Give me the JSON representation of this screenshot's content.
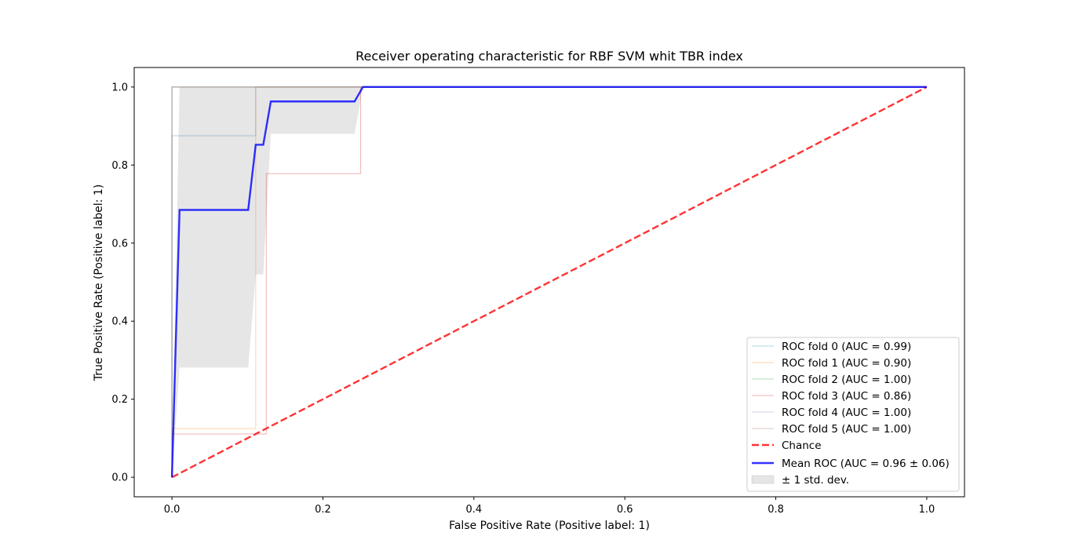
{
  "chart_data": {
    "type": "line",
    "title": "Receiver operating characteristic for RBF SVM whit TBR index",
    "xlabel": "False Positive Rate (Positive label: 1)",
    "ylabel": "True Positive Rate (Positive label: 1)",
    "xlim": [
      -0.05,
      1.05
    ],
    "ylim": [
      -0.05,
      1.05
    ],
    "xticks": [
      "0.0",
      "0.2",
      "0.4",
      "0.6",
      "0.8",
      "1.0"
    ],
    "yticks": [
      "0.0",
      "0.2",
      "0.4",
      "0.6",
      "0.8",
      "1.0"
    ],
    "grid": false,
    "legend_position": "lower-right",
    "series": [
      {
        "name": "ROC fold 0 (AUC = 0.99)",
        "color": "#1f77b4",
        "style": "thin",
        "points": [
          [
            0,
            0
          ],
          [
            0,
            0.875
          ],
          [
            0.111,
            0.875
          ],
          [
            0.111,
            1.0
          ],
          [
            1.0,
            1.0
          ]
        ]
      },
      {
        "name": "ROC fold 1 (AUC = 0.90)",
        "color": "#ff7f0e",
        "style": "thin",
        "points": [
          [
            0,
            0
          ],
          [
            0,
            0.125
          ],
          [
            0.111,
            0.125
          ],
          [
            0.111,
            1.0
          ],
          [
            1.0,
            1.0
          ]
        ]
      },
      {
        "name": "ROC fold 2 (AUC = 1.00)",
        "color": "#2ca02c",
        "style": "thin",
        "points": [
          [
            0,
            0
          ],
          [
            0,
            1.0
          ],
          [
            1.0,
            1.0
          ]
        ]
      },
      {
        "name": "ROC fold 3 (AUC = 0.86)",
        "color": "#d62728",
        "style": "thin",
        "points": [
          [
            0,
            0
          ],
          [
            0,
            0.111
          ],
          [
            0.125,
            0.111
          ],
          [
            0.125,
            0.778
          ],
          [
            0.25,
            0.778
          ],
          [
            0.25,
            1.0
          ],
          [
            1.0,
            1.0
          ]
        ]
      },
      {
        "name": "ROC fold 4 (AUC = 1.00)",
        "color": "#9467bd",
        "style": "thin",
        "points": [
          [
            0,
            0
          ],
          [
            0,
            1.0
          ],
          [
            1.0,
            1.0
          ]
        ]
      },
      {
        "name": "ROC fold 5 (AUC = 1.00)",
        "color": "#8c564b",
        "style": "thin",
        "points": [
          [
            0,
            0
          ],
          [
            0,
            1.0
          ],
          [
            1.0,
            1.0
          ]
        ]
      },
      {
        "name": "Chance",
        "color": "#ff0000",
        "style": "dashed",
        "points": [
          [
            0,
            0
          ],
          [
            1.0,
            1.0
          ]
        ]
      },
      {
        "name": "Mean ROC (AUC = 0.96 ± 0.06)",
        "color": "#0000ff",
        "style": "thick",
        "points": [
          [
            0,
            0
          ],
          [
            0.0101,
            0.685
          ],
          [
            0.101,
            0.685
          ],
          [
            0.111,
            0.852
          ],
          [
            0.121,
            0.852
          ],
          [
            0.131,
            0.963
          ],
          [
            0.242,
            0.963
          ],
          [
            0.253,
            1.0
          ],
          [
            1.0,
            1.0
          ]
        ]
      }
    ],
    "band": {
      "name": "± 1 std. dev.",
      "color": "#808080",
      "upper": [
        [
          0,
          0
        ],
        [
          0.0101,
          1.0
        ],
        [
          1.0,
          1.0
        ]
      ],
      "lower": [
        [
          0,
          0
        ],
        [
          0.0101,
          0.281
        ],
        [
          0.101,
          0.281
        ],
        [
          0.111,
          0.52
        ],
        [
          0.121,
          0.52
        ],
        [
          0.131,
          0.88
        ],
        [
          0.242,
          0.88
        ],
        [
          0.253,
          1.0
        ],
        [
          1.0,
          1.0
        ]
      ]
    }
  }
}
